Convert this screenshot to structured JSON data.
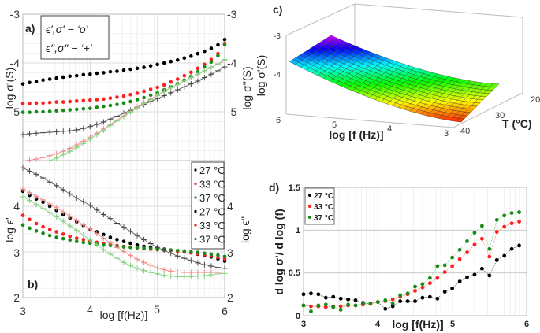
{
  "colors": {
    "black": "#000000",
    "red": "#ff1e1e",
    "green": "#168c16",
    "black_line": "#555555",
    "red_line": "#f08a8a",
    "green_line": "#7fd07f"
  },
  "chart_data": [
    {
      "panel_label": "a)",
      "type": "scatter",
      "xlim": [
        3,
        6
      ],
      "ylim": [
        -6,
        -3
      ],
      "y_ticks": [
        "-3",
        "-4",
        "-5"
      ],
      "y2_ticks": [
        "-3",
        "-4",
        "-5"
      ],
      "ylabel": "log σ'(S)",
      "y2label": "log σ''(S)",
      "grid": true,
      "legend_box": [
        "ϵ′,σ′ − ‘o’",
        "ϵ″,σ″ − ‘+’"
      ],
      "legend_placement": "top-left",
      "x": [
        3.0,
        3.1,
        3.2,
        3.3,
        3.4,
        3.5,
        3.6,
        3.7,
        3.8,
        3.9,
        4.0,
        4.1,
        4.2,
        4.3,
        4.4,
        4.5,
        4.6,
        4.7,
        4.8,
        4.9,
        5.0,
        5.1,
        5.2,
        5.3,
        5.4,
        5.5,
        5.6,
        5.7,
        5.8,
        5.9,
        6.0
      ],
      "series": [
        {
          "name": "27 °C",
          "marker": "o",
          "color": "black",
          "values": [
            -4.43,
            -4.4,
            -4.38,
            -4.35,
            -4.33,
            -4.31,
            -4.29,
            -4.27,
            -4.26,
            -4.24,
            -4.23,
            -4.21,
            -4.2,
            -4.18,
            -4.17,
            -4.15,
            -4.13,
            -4.11,
            -4.09,
            -4.06,
            -4.03,
            -4.0,
            -3.97,
            -3.94,
            -3.9,
            -3.86,
            -3.81,
            -3.76,
            -3.7,
            -3.63,
            -3.52
          ]
        },
        {
          "name": "33 °C",
          "marker": "o",
          "color": "red",
          "values": [
            -4.83,
            -4.83,
            -4.82,
            -4.82,
            -4.81,
            -4.8,
            -4.8,
            -4.79,
            -4.78,
            -4.77,
            -4.76,
            -4.75,
            -4.74,
            -4.72,
            -4.7,
            -4.68,
            -4.65,
            -4.62,
            -4.58,
            -4.54,
            -4.5,
            -4.45,
            -4.39,
            -4.33,
            -4.26,
            -4.19,
            -4.11,
            -4.03,
            -3.93,
            -3.81,
            -3.6
          ]
        },
        {
          "name": "37 °C",
          "marker": "o",
          "color": "green",
          "values": [
            -5.01,
            -5.01,
            -5.0,
            -5.0,
            -4.99,
            -4.98,
            -4.97,
            -4.96,
            -4.95,
            -4.94,
            -4.93,
            -4.91,
            -4.89,
            -4.87,
            -4.85,
            -4.82,
            -4.79,
            -4.75,
            -4.71,
            -4.66,
            -4.61,
            -4.55,
            -4.49,
            -4.42,
            -4.35,
            -4.27,
            -4.18,
            -4.08,
            -3.98,
            -3.85,
            -3.63
          ]
        },
        {
          "name": "27 °C",
          "marker": "+",
          "color": "black",
          "values": [
            -5.47,
            -5.45,
            -5.44,
            -5.43,
            -5.42,
            -5.41,
            -5.4,
            -5.39,
            -5.37,
            -5.34,
            -5.3,
            -5.26,
            -5.21,
            -5.15,
            -5.09,
            -5.03,
            -4.97,
            -4.91,
            -4.85,
            -4.79,
            -4.73,
            -4.67,
            -4.61,
            -4.55,
            -4.49,
            -4.43,
            -4.37,
            -4.3,
            -4.23,
            -4.16,
            -4.08
          ]
        },
        {
          "name": "33 °C",
          "marker": "+",
          "color": "red",
          "values": [
            -6.05,
            -5.99,
            -5.97,
            -5.94,
            -5.9,
            -5.86,
            -5.81,
            -5.75,
            -5.68,
            -5.6,
            -5.52,
            -5.44,
            -5.35,
            -5.26,
            -5.17,
            -5.08,
            -4.99,
            -4.9,
            -4.82,
            -4.74,
            -4.66,
            -4.58,
            -4.51,
            -4.44,
            -4.37,
            -4.3,
            -4.23,
            -4.16,
            -4.09,
            -4.02,
            -3.95
          ]
        },
        {
          "name": "37 °C",
          "marker": "+",
          "color": "green",
          "values": [
            -6.15,
            -6.12,
            -6.08,
            -6.04,
            -6.0,
            -5.95,
            -5.88,
            -5.81,
            -5.73,
            -5.65,
            -5.56,
            -5.47,
            -5.38,
            -5.28,
            -5.19,
            -5.1,
            -5.01,
            -4.92,
            -4.83,
            -4.75,
            -4.67,
            -4.59,
            -4.51,
            -4.44,
            -4.37,
            -4.3,
            -4.23,
            -4.16,
            -4.09,
            -4.02,
            -3.93
          ]
        }
      ]
    },
    {
      "panel_label": "b)",
      "type": "scatter",
      "xlim": [
        3,
        6
      ],
      "ylim": [
        2,
        5
      ],
      "x_ticks": [
        "3",
        "4",
        "5",
        "6"
      ],
      "y_ticks": [
        "2",
        "3",
        "4"
      ],
      "y2_ticks": [
        "2",
        "3",
        "4"
      ],
      "xlabel": "log [f(Hz)]",
      "ylabel": "log ϵ'",
      "y2label": "log ϵ''",
      "grid": true,
      "legend_placement": "top-right",
      "x": [
        3.0,
        3.1,
        3.2,
        3.3,
        3.4,
        3.5,
        3.6,
        3.7,
        3.8,
        3.9,
        4.0,
        4.1,
        4.2,
        4.3,
        4.4,
        4.5,
        4.6,
        4.7,
        4.8,
        4.9,
        5.0,
        5.1,
        5.2,
        5.3,
        5.4,
        5.5,
        5.6,
        5.7,
        5.8,
        5.9,
        6.0
      ],
      "series": [
        {
          "name": "27 °C",
          "marker": "o",
          "color": "black",
          "values": [
            4.33,
            4.24,
            4.16,
            4.09,
            4.0,
            3.91,
            3.82,
            3.74,
            3.66,
            3.58,
            3.5,
            3.44,
            3.38,
            3.32,
            3.27,
            3.23,
            3.19,
            3.15,
            3.12,
            3.1,
            3.08,
            3.06,
            3.04,
            3.02,
            3.0,
            2.98,
            2.95,
            2.92,
            2.89,
            2.85,
            2.8
          ]
        },
        {
          "name": "33 °C",
          "marker": "o",
          "color": "red",
          "values": [
            3.8,
            3.71,
            3.62,
            3.55,
            3.49,
            3.44,
            3.39,
            3.34,
            3.3,
            3.27,
            3.24,
            3.21,
            3.18,
            3.16,
            3.14,
            3.12,
            3.1,
            3.09,
            3.07,
            3.06,
            3.05,
            3.04,
            3.03,
            3.01,
            3.0,
            2.98,
            2.96,
            2.94,
            2.91,
            2.88,
            2.85
          ]
        },
        {
          "name": "37 °C",
          "marker": "o",
          "color": "green",
          "values": [
            3.59,
            3.52,
            3.46,
            3.41,
            3.36,
            3.32,
            3.29,
            3.26,
            3.23,
            3.21,
            3.19,
            3.17,
            3.15,
            3.14,
            3.12,
            3.11,
            3.1,
            3.09,
            3.08,
            3.07,
            3.06,
            3.05,
            3.04,
            3.03,
            3.02,
            3.0,
            2.99,
            2.97,
            2.95,
            2.93,
            2.9
          ]
        },
        {
          "name": "27 °C",
          "marker": "+",
          "color": "black",
          "values": [
            4.84,
            4.77,
            4.7,
            4.62,
            4.53,
            4.45,
            4.36,
            4.27,
            4.18,
            4.1,
            4.02,
            3.92,
            3.82,
            3.73,
            3.63,
            3.54,
            3.45,
            3.36,
            3.27,
            3.18,
            3.1,
            3.03,
            2.97,
            2.91,
            2.86,
            2.81,
            2.76,
            2.72,
            2.69,
            2.66,
            2.64
          ]
        },
        {
          "name": "33 °C",
          "marker": "+",
          "color": "red",
          "values": [
            4.38,
            4.3,
            4.22,
            4.14,
            4.05,
            3.97,
            3.88,
            3.78,
            3.69,
            3.59,
            3.5,
            3.4,
            3.3,
            3.2,
            3.1,
            3.01,
            2.92,
            2.84,
            2.77,
            2.71,
            2.65,
            2.61,
            2.58,
            2.56,
            2.55,
            2.55,
            2.55,
            2.55,
            2.55,
            2.55,
            2.56
          ]
        },
        {
          "name": "37 °C",
          "marker": "+",
          "color": "green",
          "values": [
            4.21,
            4.13,
            4.04,
            3.95,
            3.86,
            3.77,
            3.67,
            3.57,
            3.47,
            3.37,
            3.26,
            3.16,
            3.05,
            2.95,
            2.86,
            2.77,
            2.7,
            2.64,
            2.59,
            2.55,
            2.52,
            2.49,
            2.47,
            2.46,
            2.46,
            2.46,
            2.47,
            2.48,
            2.5,
            2.52,
            2.53
          ]
        }
      ]
    },
    {
      "panel_label": "c)",
      "type": "surface",
      "xlabel": "log [f (Hz)]",
      "ylabel": "T (°C)",
      "zlabel": "log σ'(S)",
      "x_ticks": [
        "6",
        "5",
        "4",
        "3"
      ],
      "y_ticks": [
        "20",
        "30",
        "40"
      ],
      "z_ticks": [
        "-3",
        "-4"
      ],
      "xlim": [
        3,
        6
      ],
      "ylim": [
        20,
        40
      ],
      "zlim": [
        -5,
        -3
      ],
      "colormap": "hsv (red low → magenta high)"
    },
    {
      "panel_label": "d)",
      "type": "line",
      "xlim": [
        3,
        6
      ],
      "ylim": [
        0,
        1.5
      ],
      "x_ticks": [
        "3",
        "4",
        "5",
        "6"
      ],
      "y_ticks": [
        "0",
        "0.5",
        "1",
        "1.5"
      ],
      "xlabel": "log [f(Hz)]",
      "ylabel": "d log σ'/ d log (f)",
      "grid": true,
      "legend_placement": "top-left",
      "x": [
        3.0,
        3.1,
        3.2,
        3.3,
        3.4,
        3.5,
        3.6,
        3.7,
        3.8,
        3.9,
        4.0,
        4.1,
        4.2,
        4.3,
        4.4,
        4.5,
        4.6,
        4.7,
        4.8,
        4.9,
        5.0,
        5.1,
        5.2,
        5.3,
        5.4,
        5.5,
        5.6,
        5.7,
        5.8,
        5.9
      ],
      "series": [
        {
          "name": "27 °C",
          "color": "black",
          "values": [
            0.25,
            0.26,
            0.25,
            0.21,
            0.22,
            0.2,
            0.19,
            0.18,
            0.15,
            0.14,
            0.16,
            0.08,
            0.11,
            0.17,
            0.17,
            0.17,
            0.21,
            0.22,
            0.2,
            0.28,
            0.32,
            0.4,
            0.45,
            0.48,
            0.55,
            0.47,
            0.65,
            0.7,
            0.78,
            0.82
          ]
        },
        {
          "name": "33 °C",
          "color": "red",
          "values": [
            0.12,
            0.11,
            0.11,
            0.1,
            0.11,
            0.11,
            0.12,
            0.12,
            0.13,
            0.14,
            0.16,
            0.17,
            0.19,
            0.22,
            0.25,
            0.29,
            0.33,
            0.38,
            0.44,
            0.51,
            0.58,
            0.66,
            0.74,
            0.83,
            0.9,
            0.69,
            0.98,
            1.04,
            1.08,
            1.1
          ]
        },
        {
          "name": "37 °C",
          "color": "green",
          "values": [
            0.12,
            0.05,
            0.12,
            0.13,
            0.1,
            0.07,
            0.13,
            0.12,
            0.14,
            0.14,
            0.16,
            0.18,
            0.14,
            0.24,
            0.26,
            0.34,
            0.37,
            0.44,
            0.58,
            0.59,
            0.68,
            0.77,
            0.87,
            0.97,
            1.05,
            0.78,
            1.12,
            1.17,
            1.2,
            1.21
          ]
        }
      ]
    }
  ]
}
